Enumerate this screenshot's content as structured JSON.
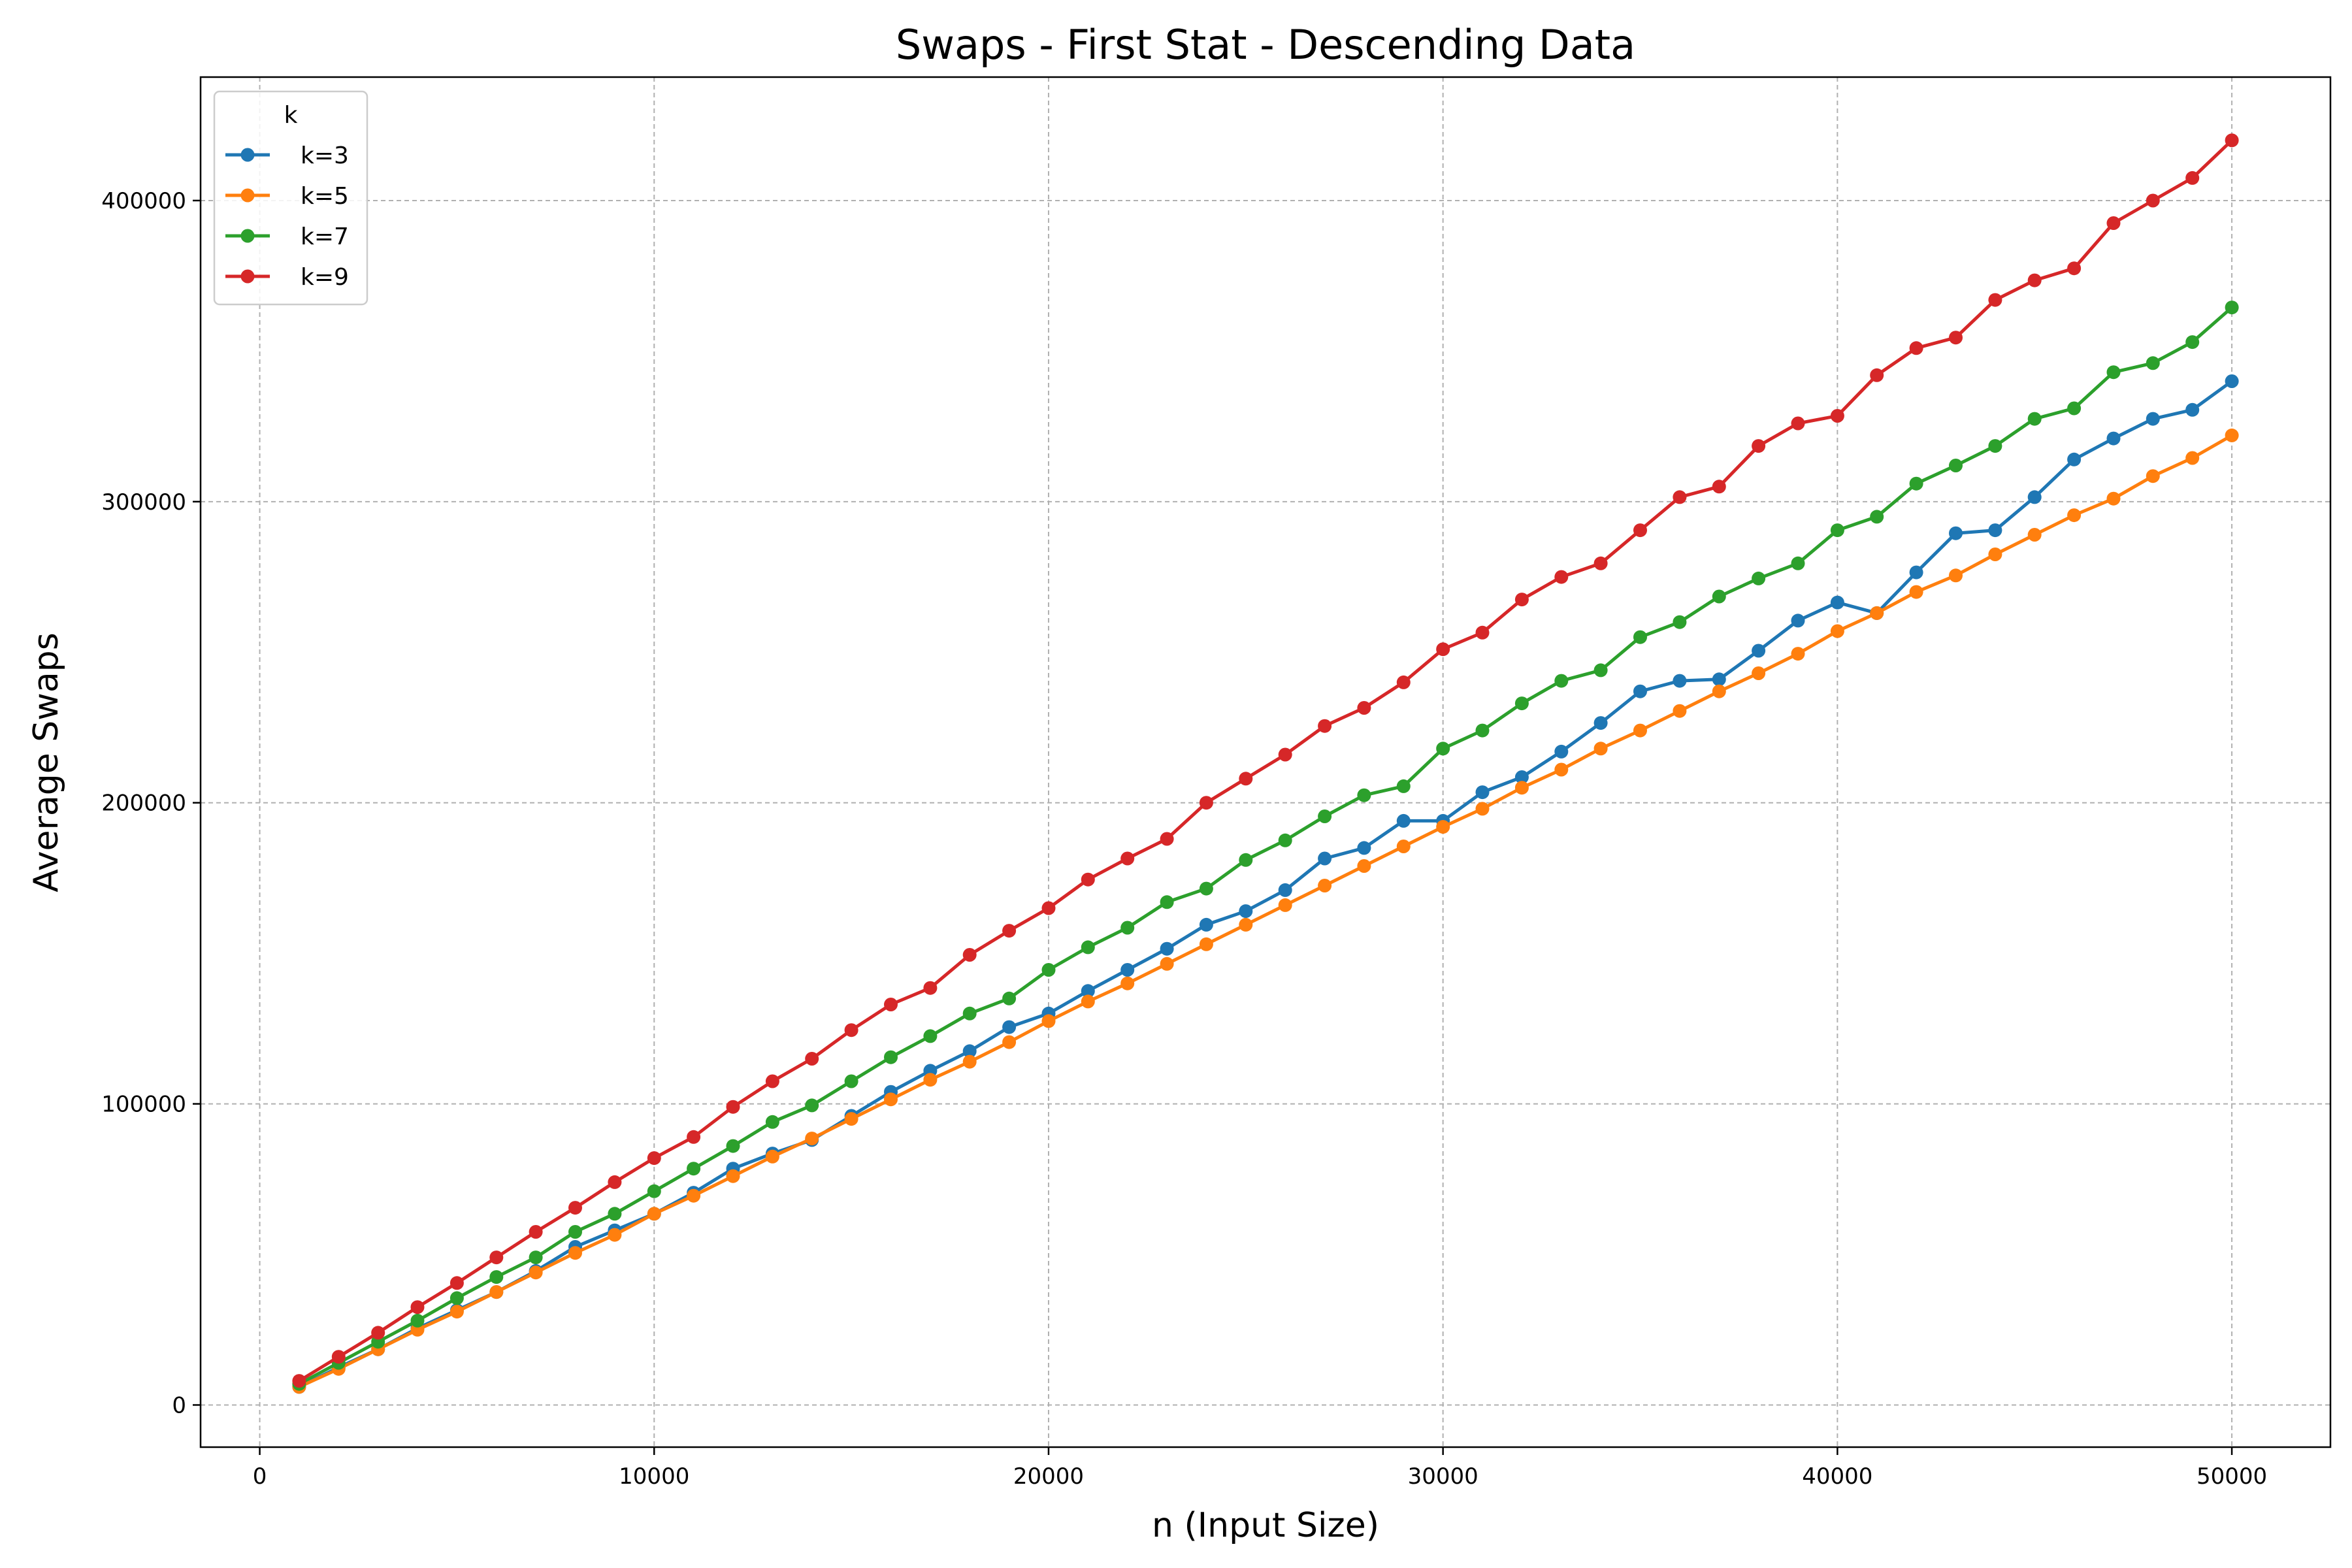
{
  "chart_data": {
    "type": "line",
    "title": "Swaps - First Stat - Descending Data",
    "xlabel": "n (Input Size)",
    "ylabel": "Average Swaps",
    "xlim": [
      -1500,
      52500
    ],
    "ylim": [
      -14000,
      441000
    ],
    "xticks": [
      0,
      10000,
      20000,
      30000,
      40000,
      50000
    ],
    "yticks": [
      0,
      100000,
      200000,
      300000,
      400000
    ],
    "grid": true,
    "legend": {
      "title": "k",
      "placement": "top-left"
    },
    "x": [
      1000,
      2000,
      3000,
      4000,
      5000,
      6000,
      7000,
      8000,
      9000,
      10000,
      11000,
      12000,
      13000,
      14000,
      15000,
      16000,
      17000,
      18000,
      19000,
      20000,
      21000,
      22000,
      23000,
      24000,
      25000,
      26000,
      27000,
      28000,
      29000,
      30000,
      31000,
      32000,
      33000,
      34000,
      35000,
      36000,
      37000,
      38000,
      39000,
      40000,
      41000,
      42000,
      43000,
      44000,
      45000,
      46000,
      47000,
      48000,
      49000,
      50000
    ],
    "series": [
      {
        "name": "k=3",
        "color": "#1f77b4",
        "values": [
          6000,
          12500,
          18500,
          25500,
          31500,
          37500,
          44500,
          52500,
          58000,
          63500,
          70500,
          78500,
          83500,
          88000,
          96000,
          104000,
          111000,
          117500,
          125500,
          130000,
          137500,
          144500,
          151500,
          159500,
          164000,
          171000,
          181500,
          185000,
          194000,
          194000,
          203500,
          208500,
          217000,
          226500,
          237000,
          240500,
          241000,
          250500,
          260500,
          266500,
          263000,
          276500,
          289500,
          290500,
          301500,
          314000,
          321000,
          327500,
          330500,
          340000
        ]
      },
      {
        "name": "k=5",
        "color": "#ff7f0e",
        "values": [
          6000,
          12000,
          18500,
          25000,
          31000,
          37500,
          44000,
          50500,
          56500,
          63500,
          69500,
          76000,
          82500,
          88500,
          95000,
          101500,
          108000,
          114000,
          120500,
          127500,
          134000,
          140000,
          146500,
          153000,
          159500,
          166000,
          172500,
          179000,
          185500,
          192000,
          198000,
          205000,
          211000,
          218000,
          224000,
          230500,
          237000,
          243000,
          249500,
          257000,
          263000,
          270000,
          275500,
          282500,
          289000,
          295500,
          301000,
          308500,
          314500,
          322000
        ]
      },
      {
        "name": "k=7",
        "color": "#2ca02c",
        "values": [
          7000,
          14000,
          21000,
          28000,
          35500,
          42500,
          49000,
          57500,
          63500,
          71000,
          78500,
          86000,
          94000,
          99500,
          107500,
          115500,
          122500,
          130000,
          135000,
          144500,
          152000,
          158500,
          167000,
          171500,
          181000,
          187500,
          195500,
          202500,
          205500,
          218000,
          224000,
          233000,
          240500,
          244000,
          255000,
          260000,
          268500,
          274500,
          279500,
          290500,
          295000,
          306000,
          312000,
          318500,
          327500,
          331000,
          343000,
          346000,
          353000,
          364500
        ]
      },
      {
        "name": "k=9",
        "color": "#d62728",
        "values": [
          8000,
          16000,
          24000,
          32500,
          40500,
          49000,
          57500,
          65500,
          74000,
          82000,
          89000,
          99000,
          107500,
          115000,
          124500,
          133000,
          138500,
          149500,
          157500,
          165000,
          174500,
          181500,
          188000,
          200000,
          208000,
          216000,
          225500,
          231500,
          240000,
          251000,
          256500,
          267500,
          275000,
          279500,
          290500,
          301500,
          305000,
          318500,
          326000,
          328500,
          342000,
          351000,
          354500,
          367000,
          373500,
          377500,
          392500,
          400000,
          407500,
          420000
        ]
      }
    ]
  }
}
